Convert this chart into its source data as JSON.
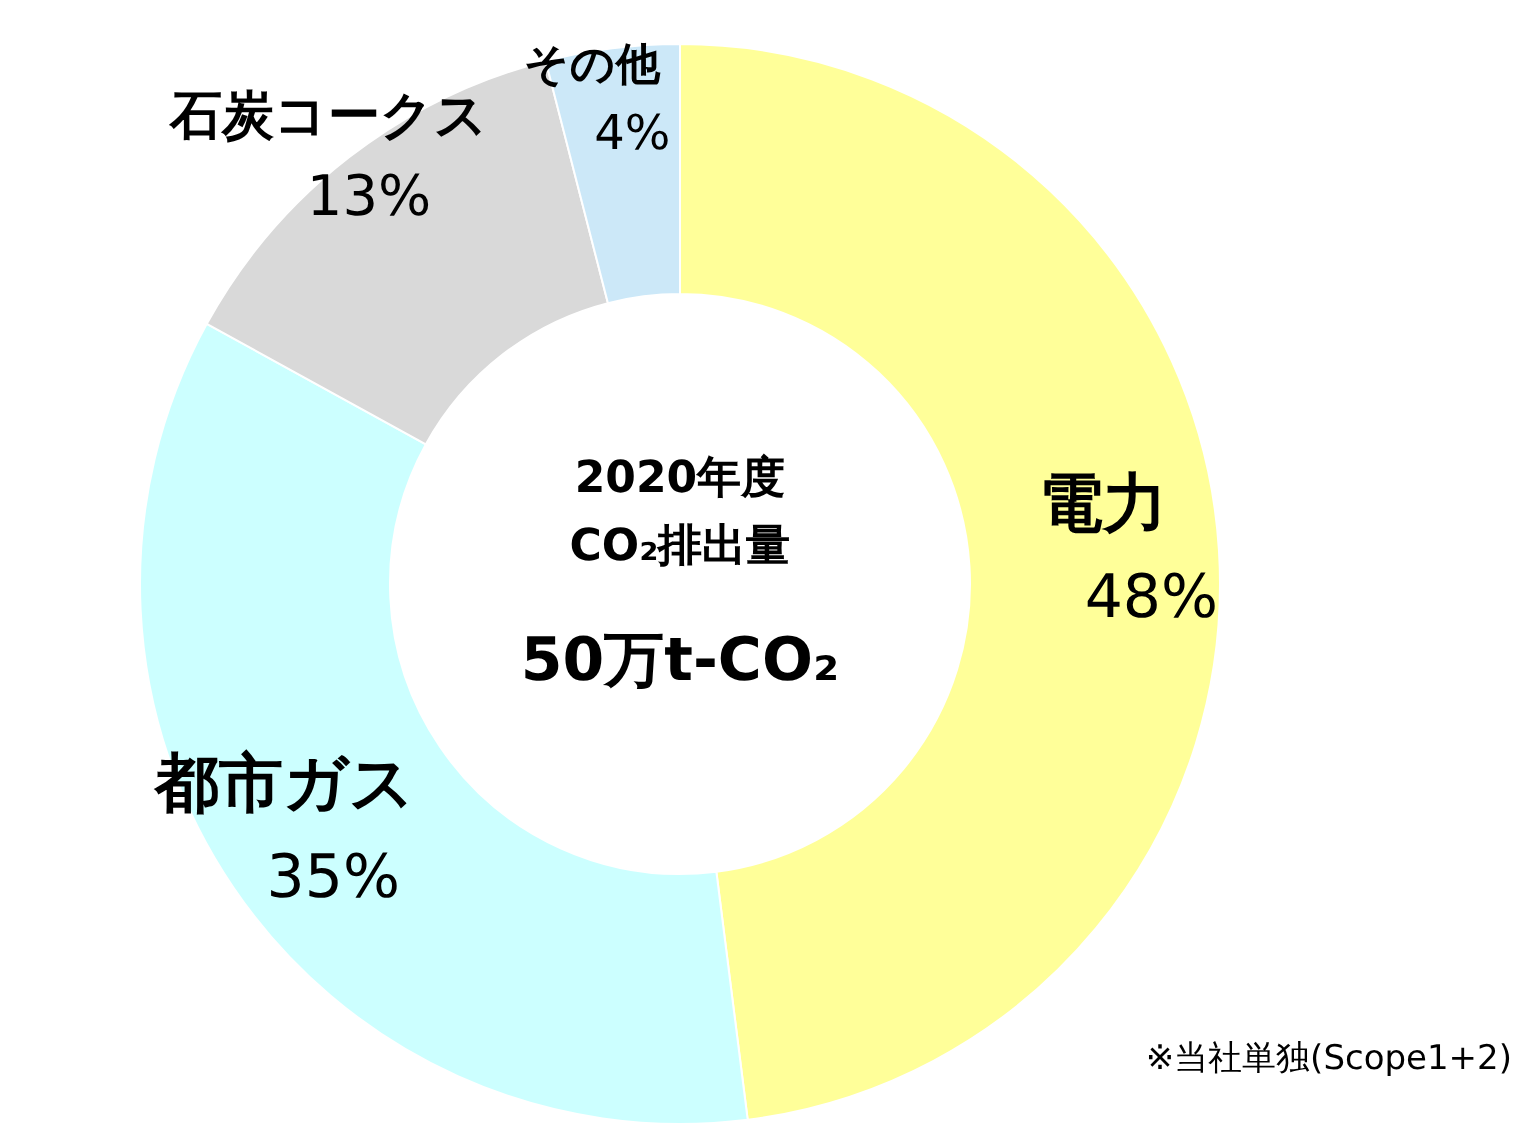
{
  "chart_data": {
    "type": "donut",
    "title": "2020年度",
    "subtitle": "CO₂排出量",
    "categories": [
      "電力",
      "都市ガス",
      "石炭コークス",
      "その他"
    ],
    "values": [
      48,
      35,
      13,
      4
    ],
    "colors": [
      "#ffff99",
      "#ccffff",
      "#d9d9d9",
      "#cce8f8"
    ],
    "value_labels": [
      "48%",
      "35%",
      "13%",
      "4%"
    ],
    "annotations": [
      "50万t-CO₂",
      "※当社単独(Scope1+2)"
    ]
  }
}
